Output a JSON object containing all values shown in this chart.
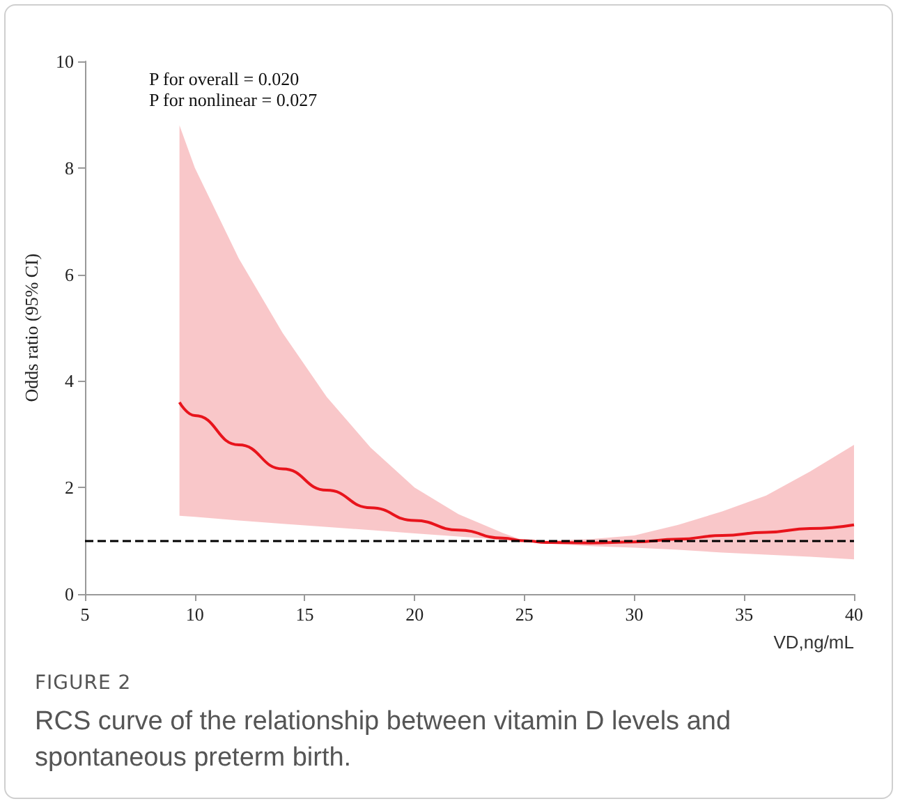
{
  "chart_data": {
    "type": "line",
    "title": "FIGURE 2",
    "subtitle": "RCS curve of the relationship between vitamin D levels and spontaneous preterm birth.",
    "xlabel": "VD,ng/mL",
    "ylabel": "Odds ratio (95% CI)",
    "annotations": [
      "P for overall = 0.020",
      "P for nonlinear = 0.027"
    ],
    "x": [
      9.3,
      10,
      12,
      14,
      16,
      18,
      20,
      22,
      24,
      25,
      26,
      28,
      30,
      32,
      34,
      36,
      38,
      40
    ],
    "series": [
      {
        "color": "#e8141c",
        "values": [
          3.6,
          3.35,
          2.8,
          2.35,
          1.95,
          1.62,
          1.38,
          1.2,
          1.05,
          1.0,
          0.97,
          0.96,
          0.98,
          1.03,
          1.1,
          1.16,
          1.23,
          1.3
        ],
        "upper": [
          8.8,
          8.0,
          6.3,
          4.9,
          3.7,
          2.75,
          2.0,
          1.5,
          1.15,
          1.0,
          1.0,
          1.03,
          1.1,
          1.3,
          1.55,
          1.85,
          2.3,
          2.8
        ],
        "lower": [
          1.47,
          1.45,
          1.38,
          1.32,
          1.26,
          1.2,
          1.14,
          1.08,
          1.02,
          1.0,
          0.95,
          0.9,
          0.87,
          0.83,
          0.78,
          0.74,
          0.7,
          0.65
        ]
      }
    ],
    "xlim": [
      5,
      40
    ],
    "xticks": [
      5,
      10,
      15,
      20,
      25,
      30,
      35,
      40
    ],
    "ylim": [
      0,
      10
    ],
    "yticks": [
      0,
      2,
      4,
      6,
      8,
      10
    ],
    "ref_lines": [
      {
        "axis": "y",
        "value": 1,
        "color": "#000000",
        "line_style": "dashed"
      }
    ],
    "grid": false,
    "marker": "none",
    "line_style": "solid"
  }
}
